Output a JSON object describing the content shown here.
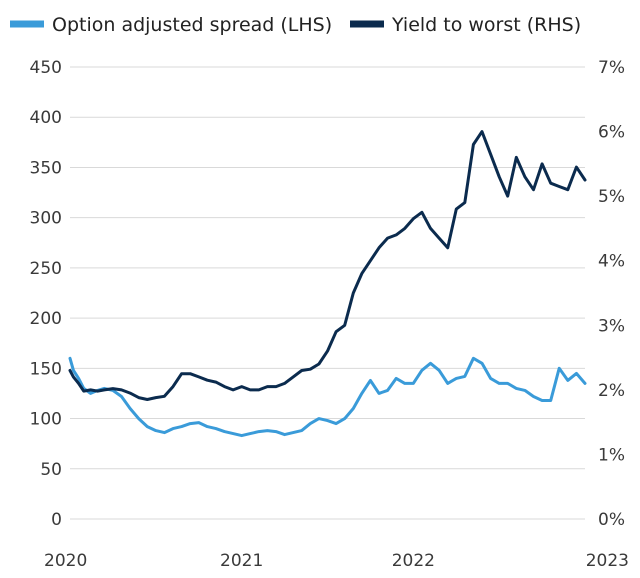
{
  "chart_data": {
    "type": "line",
    "legend_position": "top",
    "grid": "horizontal",
    "x_ticks": [
      "2020",
      "2021",
      "2022",
      "2023"
    ],
    "x_range": [
      2020.0,
      2023.0
    ],
    "left_axis": {
      "ticks": [
        "0",
        "50",
        "100",
        "150",
        "200",
        "250",
        "300",
        "350",
        "400",
        "450"
      ],
      "range": [
        0,
        450
      ]
    },
    "right_axis": {
      "ticks": [
        "0%",
        "1%",
        "2%",
        "3%",
        "4%",
        "5%",
        "6%",
        "7%"
      ],
      "range": [
        0,
        7
      ]
    },
    "series": [
      {
        "name": "Option adjusted spread (LHS)",
        "axis": "left",
        "color": "#3a9bd9",
        "x": [
          2020.0,
          2020.02,
          2020.05,
          2020.08,
          2020.12,
          2020.16,
          2020.2,
          2020.25,
          2020.3,
          2020.35,
          2020.4,
          2020.45,
          2020.5,
          2020.55,
          2020.6,
          2020.65,
          2020.7,
          2020.75,
          2020.8,
          2020.85,
          2020.9,
          2020.95,
          2021.0,
          2021.05,
          2021.1,
          2021.15,
          2021.2,
          2021.25,
          2021.3,
          2021.35,
          2021.4,
          2021.45,
          2021.5,
          2021.55,
          2021.6,
          2021.65,
          2021.7,
          2021.75,
          2021.8,
          2021.85,
          2021.9,
          2021.95,
          2022.0,
          2022.05,
          2022.1,
          2022.15,
          2022.2,
          2022.25,
          2022.3,
          2022.35,
          2022.4,
          2022.45,
          2022.5,
          2022.55,
          2022.6,
          2022.65,
          2022.7,
          2022.75,
          2022.8,
          2022.85,
          2022.9,
          2022.95,
          2023.0
        ],
        "values": [
          160,
          148,
          140,
          130,
          125,
          128,
          130,
          128,
          122,
          110,
          100,
          92,
          88,
          86,
          90,
          92,
          95,
          96,
          92,
          90,
          87,
          85,
          83,
          85,
          87,
          88,
          87,
          84,
          86,
          88,
          95,
          100,
          98,
          95,
          100,
          110,
          125,
          138,
          125,
          128,
          140,
          135,
          135,
          148,
          155,
          148,
          135,
          140,
          142,
          160,
          155,
          140,
          135,
          135,
          130,
          128,
          122,
          118,
          118,
          150,
          138,
          145,
          135
        ]
      },
      {
        "name": "Yield to worst (RHS)",
        "axis": "right",
        "color": "#0b2b4e",
        "x": [
          2020.0,
          2020.02,
          2020.05,
          2020.08,
          2020.12,
          2020.16,
          2020.2,
          2020.25,
          2020.3,
          2020.35,
          2020.4,
          2020.45,
          2020.5,
          2020.55,
          2020.6,
          2020.65,
          2020.7,
          2020.75,
          2020.8,
          2020.85,
          2020.9,
          2020.95,
          2021.0,
          2021.05,
          2021.1,
          2021.15,
          2021.2,
          2021.25,
          2021.3,
          2021.35,
          2021.4,
          2021.45,
          2021.5,
          2021.55,
          2021.6,
          2021.65,
          2021.7,
          2021.75,
          2021.8,
          2021.85,
          2021.9,
          2021.95,
          2022.0,
          2022.05,
          2022.1,
          2022.15,
          2022.2,
          2022.25,
          2022.3,
          2022.35,
          2022.4,
          2022.45,
          2022.5,
          2022.55,
          2022.6,
          2022.65,
          2022.7,
          2022.75,
          2022.8,
          2022.85,
          2022.9,
          2022.95,
          2023.0
        ],
        "values": [
          2.3,
          2.2,
          2.1,
          1.98,
          2.0,
          1.98,
          2.0,
          2.02,
          2.0,
          1.95,
          1.88,
          1.85,
          1.88,
          1.9,
          2.05,
          2.25,
          2.25,
          2.2,
          2.15,
          2.12,
          2.05,
          2.0,
          2.05,
          2.0,
          2.0,
          2.05,
          2.05,
          2.1,
          2.2,
          2.3,
          2.32,
          2.4,
          2.6,
          2.9,
          3.0,
          3.5,
          3.8,
          4.0,
          4.2,
          4.35,
          4.4,
          4.5,
          4.65,
          4.75,
          4.5,
          4.35,
          4.2,
          4.8,
          4.9,
          5.8,
          6.0,
          5.65,
          5.3,
          5.0,
          5.6,
          5.3,
          5.1,
          5.5,
          5.2,
          5.15,
          5.1,
          5.45,
          5.25
        ]
      }
    ]
  }
}
